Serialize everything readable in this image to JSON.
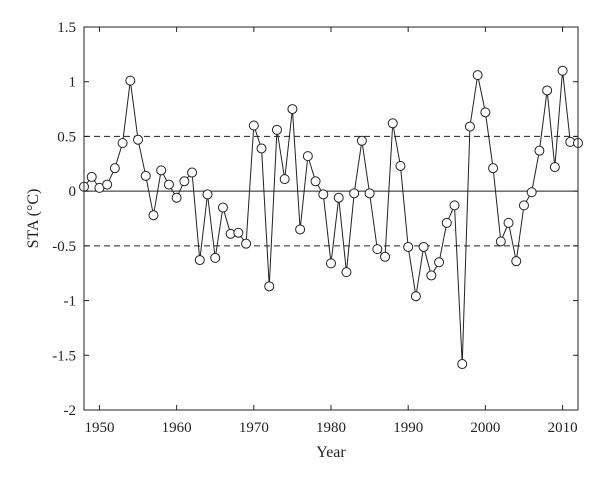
{
  "chart_data": {
    "type": "line",
    "xlabel": "Year",
    "ylabel": "STA (°C)",
    "xlim": [
      1948,
      2012
    ],
    "ylim": [
      -2,
      1.5
    ],
    "xticks": [
      1950,
      1960,
      1970,
      1980,
      1990,
      2000,
      2010
    ],
    "yticks": [
      1.5,
      1,
      0.5,
      0,
      -0.5,
      -1,
      -1.5,
      -2
    ],
    "ytick_labels": [
      "1.5",
      "1",
      "0.5",
      "0",
      "-0.5",
      "-1",
      "-1.5",
      "-2"
    ],
    "reference_lines": [
      {
        "y": 0.5,
        "style": "dashed"
      },
      {
        "y": 0,
        "style": "solid"
      },
      {
        "y": -0.5,
        "style": "dashed"
      }
    ],
    "marker": "open-circle",
    "grid": false,
    "series": [
      {
        "x": [
          1948,
          1949,
          1950,
          1951,
          1952,
          1953,
          1954,
          1955,
          1956,
          1957,
          1958,
          1959,
          1960,
          1961,
          1962,
          1963,
          1964,
          1965,
          1966,
          1967,
          1968,
          1969,
          1970,
          1971,
          1972,
          1973,
          1974,
          1975,
          1976,
          1977,
          1978,
          1979,
          1980,
          1981,
          1982,
          1983,
          1984,
          1985,
          1986,
          1987,
          1988,
          1989,
          1990,
          1991,
          1992,
          1993,
          1994,
          1995,
          1996,
          1997,
          1998,
          1999,
          2000,
          2001,
          2002,
          2003,
          2004,
          2005,
          2006,
          2007,
          2008,
          2009,
          2010,
          2011,
          2012
        ],
        "values": [
          0.04,
          0.13,
          0.03,
          0.06,
          0.21,
          0.44,
          1.01,
          0.47,
          0.14,
          -0.22,
          0.19,
          0.06,
          -0.06,
          0.09,
          0.17,
          -0.63,
          -0.03,
          -0.61,
          -0.15,
          -0.39,
          -0.38,
          -0.48,
          0.6,
          0.39,
          -0.87,
          0.56,
          0.11,
          0.75,
          -0.35,
          0.32,
          0.09,
          -0.03,
          -0.66,
          -0.06,
          -0.74,
          -0.02,
          0.46,
          -0.02,
          -0.53,
          -0.6,
          0.62,
          0.23,
          -0.51,
          -0.96,
          -0.51,
          -0.77,
          -0.65,
          -0.29,
          -0.13,
          -1.58,
          0.59,
          1.06,
          0.72,
          0.21,
          -0.46,
          -0.29,
          -0.64,
          -0.13,
          -0.01,
          0.37,
          0.92,
          0.22,
          1.1,
          0.45,
          0.44
        ]
      }
    ]
  }
}
